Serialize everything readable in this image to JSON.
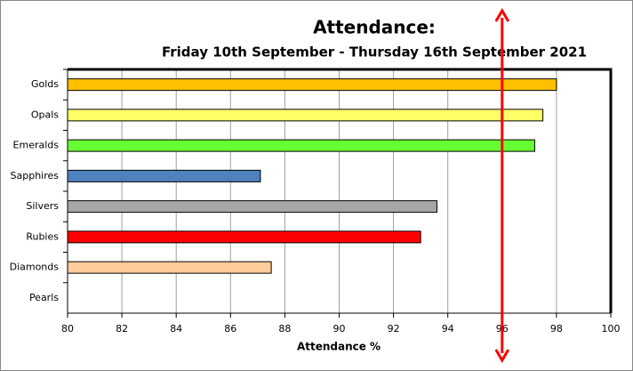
{
  "chart_data": {
    "type": "bar",
    "orientation": "horizontal",
    "title": "Attendance:",
    "subtitle": "Friday 10th September - Thursday 16th September 2021",
    "x_label": "Attendance %",
    "categories": [
      "Golds",
      "Opals",
      "Emeralds",
      "Sapphires",
      "Silvers",
      "Rubies",
      "Diamonds",
      "Pearls"
    ],
    "values": [
      98.0,
      97.5,
      97.2,
      87.1,
      93.6,
      93.0,
      87.5,
      null
    ],
    "colors": [
      "#ffc000",
      "#ffff66",
      "#66ff33",
      "#4f81bd",
      "#a6a6a6",
      "#ff0000",
      "#ffcc99",
      null
    ],
    "xlim": [
      80,
      100
    ],
    "xticks": [
      80,
      82,
      84,
      86,
      88,
      90,
      92,
      94,
      96,
      98,
      100
    ],
    "grid": true,
    "reference_line": {
      "value": 96,
      "color": "#ff0000"
    }
  }
}
